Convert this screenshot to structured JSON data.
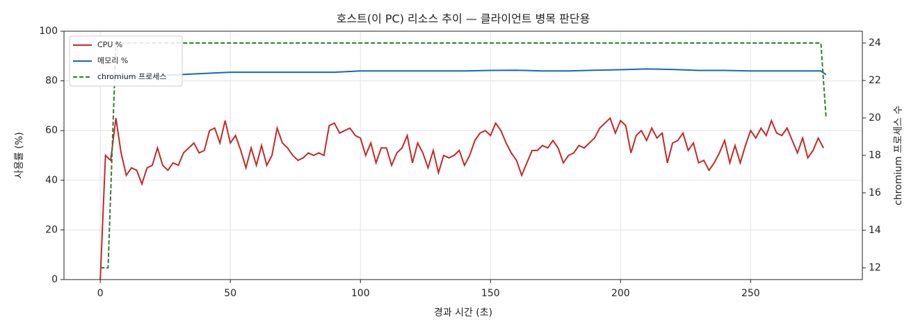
{
  "chart_data": {
    "type": "line",
    "title": "호스트(이 PC) 리소스 추이 — 클라이언트 병목 판단용",
    "x_label": "경과 시간 (초)",
    "y_label": "사용률 (%)",
    "y2_label": "chromium 프로세스 수",
    "xlim": [
      -13.95,
      292.95
    ],
    "xticks": [
      0,
      50,
      100,
      150,
      200,
      250
    ],
    "ylim": [
      0,
      100
    ],
    "yticks": [
      0,
      20,
      40,
      60,
      80,
      100
    ],
    "y2lim": [
      11.37,
      24.63
    ],
    "y2ticks": [
      12,
      14,
      16,
      18,
      20,
      22,
      24
    ],
    "grid": true,
    "legend": "upper left",
    "series": [
      {
        "name": "CPU %",
        "color": "#c62828",
        "style": "solid",
        "x": [
          0,
          2,
          4,
          6,
          8,
          10,
          12,
          14,
          16,
          18,
          20,
          22,
          24,
          26,
          28,
          30,
          32,
          34,
          36,
          38,
          40,
          42,
          44,
          46,
          48,
          50,
          52,
          54,
          56,
          58,
          60,
          62,
          64,
          66,
          68,
          70,
          72,
          74,
          76,
          78,
          80,
          82,
          84,
          86,
          88,
          90,
          92,
          94,
          96,
          98,
          100,
          102,
          104,
          106,
          108,
          110,
          112,
          114,
          116,
          118,
          120,
          122,
          124,
          126,
          128,
          130,
          132,
          134,
          136,
          138,
          140,
          142,
          144,
          146,
          148,
          150,
          152,
          154,
          156,
          158,
          160,
          162,
          164,
          166,
          168,
          170,
          172,
          174,
          176,
          178,
          180,
          182,
          184,
          186,
          188,
          190,
          192,
          194,
          196,
          198,
          200,
          202,
          204,
          206,
          208,
          210,
          212,
          214,
          216,
          218,
          220,
          222,
          224,
          226,
          228,
          230,
          232,
          234,
          236,
          238,
          240,
          242,
          244,
          246,
          248,
          250,
          252,
          254,
          256,
          258,
          260,
          262,
          264,
          266,
          268,
          270,
          272,
          274,
          276,
          278
        ],
        "values": [
          0,
          50,
          48,
          65,
          51,
          42,
          45,
          44,
          38.5,
          45,
          46,
          53,
          46,
          44,
          47,
          46,
          51,
          53,
          55,
          51,
          52,
          60,
          61,
          55,
          64,
          55,
          58,
          52,
          45,
          53,
          46,
          54,
          46,
          50,
          61,
          55,
          53,
          50,
          48,
          49,
          51,
          50,
          51,
          50,
          62,
          63,
          59,
          60,
          61,
          58,
          57,
          50,
          55,
          47,
          53,
          53,
          46,
          51,
          53,
          58,
          47,
          55,
          51,
          45,
          52,
          43,
          50,
          49,
          50,
          52,
          46,
          50,
          56,
          59,
          60,
          58,
          63,
          60,
          55,
          51,
          48,
          42,
          47,
          52,
          52,
          54,
          53,
          56,
          53,
          47,
          50,
          51,
          54,
          53,
          55,
          57,
          61,
          63,
          65,
          59,
          64,
          62,
          51,
          58,
          60,
          56,
          61,
          57,
          59,
          47,
          55,
          56,
          59,
          52,
          55,
          47,
          48,
          44,
          47,
          51,
          56,
          47,
          54,
          47,
          54,
          60,
          57,
          61,
          58,
          64,
          59,
          58,
          61,
          56,
          51,
          57,
          49,
          52,
          57,
          53
        ]
      },
      {
        "name": "메모리 %",
        "color": "#1565c0",
        "style": "solid",
        "x": [
          0,
          10,
          20,
          30,
          40,
          50,
          60,
          70,
          80,
          90,
          100,
          110,
          120,
          130,
          140,
          150,
          160,
          170,
          180,
          190,
          200,
          210,
          220,
          230,
          240,
          250,
          260,
          270,
          277,
          279
        ],
        "values": [
          81,
          81.5,
          82,
          82.5,
          83,
          83.5,
          83.5,
          83.5,
          83.5,
          83.5,
          84,
          84,
          84,
          84,
          84,
          84.2,
          84.3,
          84,
          84,
          84.3,
          84.5,
          84.8,
          84.6,
          84.2,
          84.2,
          84,
          84,
          84,
          84,
          82.5
        ]
      },
      {
        "name": "chromium 프로세스",
        "color": "#2e7d32",
        "style": "dashed",
        "axis": "y2",
        "x": [
          0,
          1,
          2,
          3,
          4,
          5,
          6,
          277,
          278,
          279
        ],
        "values": [
          12,
          12,
          12,
          12,
          16,
          20,
          24,
          24,
          22,
          20
        ]
      }
    ]
  }
}
